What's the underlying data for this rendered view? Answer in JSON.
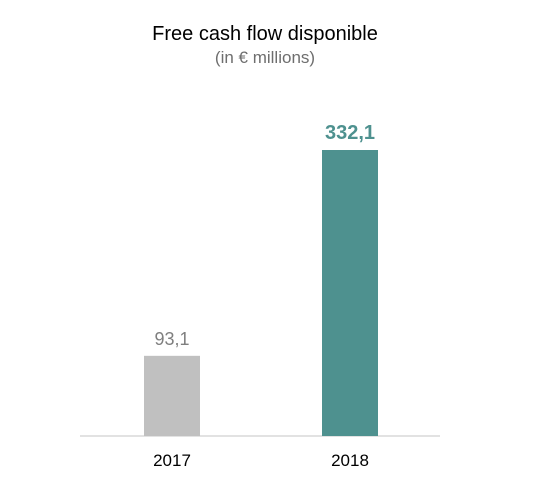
{
  "chart_data": {
    "type": "bar",
    "title": "Free cash flow disponible",
    "subtitle": "(in € millions)",
    "categories": [
      "2017",
      "2018"
    ],
    "values": [
      93.1,
      332.1
    ],
    "value_labels": [
      "93,1",
      "332,1"
    ],
    "ylim": [
      0,
      332.1
    ],
    "grid": false,
    "legend": "none",
    "colors": {
      "bars": [
        "#c0c0c0",
        "#4e918f"
      ],
      "value_labels": [
        "#7f7f7f",
        "#4e918f"
      ],
      "axis": "#d9d9d9"
    }
  }
}
